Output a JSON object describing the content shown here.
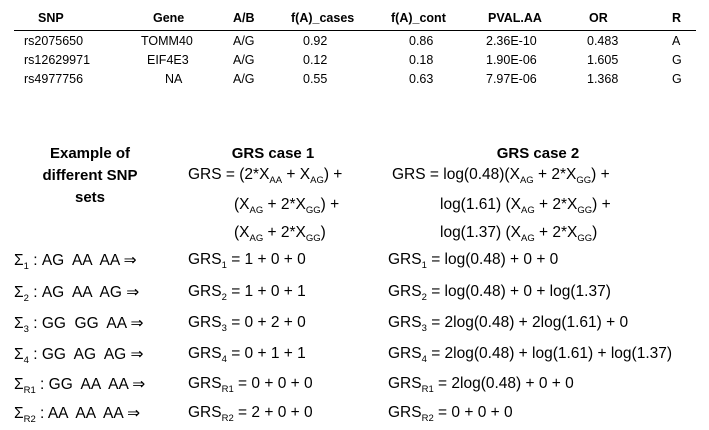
{
  "table": {
    "headers": [
      "SNP",
      "Gene",
      "A/B",
      "f(A)_cases",
      "f(A)_cont",
      "PVAL.AA",
      "OR",
      "R"
    ],
    "rows": [
      [
        "rs2075650",
        "TOMM40",
        "A/G",
        "0.92",
        "0.86",
        "2.36E-10",
        "0.483",
        "A"
      ],
      [
        "rs12629971",
        "EIF4E3",
        "A/G",
        "0.12",
        "0.18",
        "1.90E-06",
        "1.605",
        "G"
      ],
      [
        "rs4977756",
        "NA",
        "A/G",
        "0.55",
        "0.63",
        "7.97E-06",
        "1.368",
        "G"
      ]
    ]
  },
  "example_header": [
    "Example of",
    "different SNP",
    "sets"
  ],
  "grs_case1": {
    "title": "GRS case 1",
    "formula": [
      "GRS = (2*X",
      "AA",
      " + X",
      "AG",
      ") +",
      "(X",
      "AG",
      " + 2*X",
      "GG",
      ") +",
      "(X",
      "AG",
      " + 2*X",
      "GG",
      ")"
    ]
  },
  "grs_case2": {
    "title": "GRS case 2",
    "formula_lines": [
      "GRS = log(0.48)(X_AG + 2*X_GG) +",
      "log(1.61) (X_AG + 2*X_GG) +",
      "log(1.37) (X_AG + 2*X_GG)"
    ]
  },
  "sets": [
    {
      "sym": "Σ",
      "sub": "1",
      "genotypes": "AG  AA  AA",
      "case1": "= 1 + 0 + 0",
      "case2": "= log(0.48) + 0 + 0"
    },
    {
      "sym": "Σ",
      "sub": "2",
      "genotypes": "AG  AA  AG",
      "case1": "= 1 + 0 + 1",
      "case2": "= log(0.48) + 0 + log(1.37)"
    },
    {
      "sym": "Σ",
      "sub": "3",
      "genotypes": "GG  GG  AA",
      "case1": "= 0 + 2 + 0",
      "case2": "= 2log(0.48) + 2log(1.61) + 0"
    },
    {
      "sym": "Σ",
      "sub": "4",
      "genotypes": "GG  AG  AG",
      "case1": "= 0 + 1 + 1",
      "case2": "= 2log(0.48) + log(1.61) + log(1.37)"
    },
    {
      "sym": "Σ",
      "sub": "R1",
      "genotypes": "GG  AA  AA",
      "case1": "= 0 + 0 + 0",
      "case2": "= 2log(0.48) + 0 + 0"
    },
    {
      "sym": "Σ",
      "sub": "R2",
      "genotypes": "AA  AA  AA",
      "case1": "= 2 + 0 + 0",
      "case2": "= 0 + 0 + 0"
    }
  ],
  "arrow": "⇒",
  "grs_label": "GRS"
}
